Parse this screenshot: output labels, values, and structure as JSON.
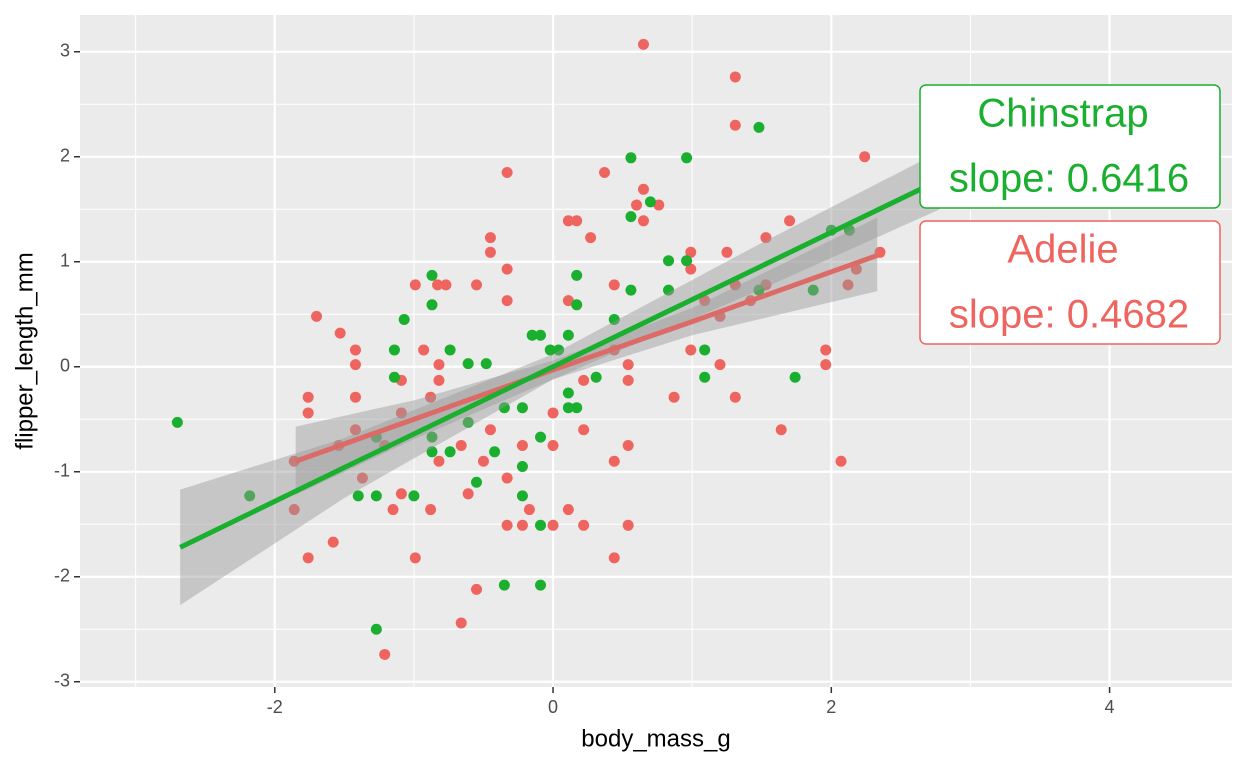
{
  "chart_data": {
    "type": "scatter",
    "x_label": "body_mass_g",
    "y_label": "flipper_length_mm",
    "xlim": [
      -3.4,
      4.88
    ],
    "ylim": [
      -3.05,
      3.35
    ],
    "xticks": [
      -2,
      0,
      2,
      4
    ],
    "yticks": [
      -3,
      -2,
      -1,
      0,
      1,
      2,
      3
    ],
    "grid": true,
    "series": [
      {
        "name": "Adelie",
        "color": "#ee6560",
        "line_color": "#dc6b68",
        "slope_label": "slope: 0.4682",
        "x": [
          0.65,
          1.31,
          1.31,
          2.24,
          -0.33,
          0.37,
          0.65,
          0.76,
          0.6,
          0.11,
          0.17,
          0.65,
          0.27,
          -0.45,
          -0.45,
          -0.33,
          -0.99,
          -0.83,
          -0.77,
          -0.55,
          -0.33,
          0.11,
          0.44,
          0.99,
          0.99,
          1.25,
          1.53,
          1.7,
          2.18,
          2.35,
          2.12,
          -1.7,
          -1.53,
          -1.42,
          -1.42,
          -1.76,
          -1.76,
          -1.86,
          -1.86,
          -1.76,
          -1.58,
          -1.42,
          -1.42,
          -1.54,
          -1.21,
          -1.37,
          -1.21,
          -1.15,
          -1.09,
          -1.09,
          -1.09,
          -0.99,
          -0.93,
          -0.88,
          -0.88,
          -0.82,
          -0.82,
          -0.82,
          -0.66,
          -0.66,
          -0.61,
          -0.55,
          -0.5,
          -0.45,
          -0.33,
          -0.33,
          -0.22,
          -0.17,
          -0.22,
          0.0,
          0.0,
          0.0,
          0.11,
          0.22,
          0.22,
          0.22,
          0.44,
          0.44,
          0.54,
          0.54,
          0.54,
          0.54,
          0.44,
          0.87,
          0.99,
          1.09,
          1.2,
          1.2,
          1.31,
          1.31,
          1.64,
          1.96,
          1.96,
          2.07,
          1.53,
          1.42
        ],
        "values": [
          3.07,
          2.76,
          2.3,
          2.0,
          1.85,
          1.85,
          1.69,
          1.54,
          1.54,
          1.39,
          1.39,
          1.39,
          1.23,
          1.23,
          1.09,
          0.93,
          0.78,
          0.78,
          0.78,
          0.78,
          0.63,
          0.63,
          0.78,
          1.09,
          0.93,
          1.09,
          1.23,
          1.39,
          0.93,
          1.09,
          0.78,
          0.48,
          0.32,
          0.16,
          0.02,
          -0.29,
          -0.44,
          -0.9,
          -1.36,
          -1.82,
          -1.67,
          -0.29,
          -0.6,
          -0.75,
          -2.74,
          -1.06,
          -0.75,
          -1.36,
          -1.21,
          -0.44,
          -0.13,
          -1.82,
          0.16,
          -1.36,
          -0.29,
          -0.13,
          0.02,
          -0.9,
          -0.75,
          -2.44,
          -1.21,
          -2.12,
          -0.9,
          -0.6,
          -1.06,
          -1.51,
          -1.51,
          -1.36,
          -0.75,
          -0.75,
          -0.44,
          -1.51,
          -1.36,
          -1.51,
          -0.6,
          -0.13,
          -0.9,
          -1.82,
          -1.51,
          -0.75,
          -0.13,
          0.02,
          0.16,
          -0.29,
          0.16,
          0.63,
          0.48,
          0.02,
          -0.29,
          0.78,
          -0.6,
          0.02,
          0.16,
          -0.9,
          0.78,
          0.63
        ],
        "fit": {
          "x": [
            -1.85,
            -1,
            0,
            1,
            2.33
          ],
          "values": [
            -0.9,
            -0.5,
            -0.03,
            0.43,
            1.06
          ],
          "lower": [
            -1.22,
            -0.69,
            -0.12,
            0.3,
            0.72
          ],
          "upper": [
            -0.57,
            -0.32,
            0.06,
            0.56,
            1.42
          ]
        }
      },
      {
        "name": "Chinstrap",
        "color": "#1aaf2e",
        "line_color": "#1aaf2e",
        "slope_label": "slope: 0.6416",
        "x": [
          -2.7,
          -2.18,
          -1.27,
          -1.4,
          -1.27,
          -1.0,
          -1.27,
          -1.14,
          -1.14,
          -1.07,
          -0.87,
          -0.87,
          -0.87,
          -0.87,
          -0.74,
          -0.74,
          -0.61,
          -0.61,
          -0.55,
          -0.48,
          -0.42,
          -0.35,
          -0.35,
          -0.22,
          -0.22,
          -0.22,
          -0.15,
          -0.09,
          -0.09,
          -0.09,
          -0.09,
          -0.02,
          0.04,
          0.11,
          0.11,
          0.11,
          0.17,
          0.17,
          0.17,
          0.31,
          0.44,
          0.56,
          0.56,
          0.56,
          0.7,
          0.83,
          0.83,
          0.96,
          0.96,
          1.09,
          1.09,
          1.48,
          1.48,
          1.74,
          1.87,
          2.0,
          2.13
        ],
        "values": [
          -0.53,
          -1.23,
          -2.5,
          -1.23,
          -1.23,
          -1.23,
          -0.67,
          0.16,
          -0.1,
          0.45,
          0.87,
          0.59,
          -0.67,
          -0.81,
          0.16,
          -0.81,
          0.03,
          -0.53,
          -1.1,
          0.03,
          -0.81,
          -2.08,
          -0.39,
          -0.39,
          -0.95,
          -1.23,
          0.3,
          0.3,
          -2.08,
          -1.51,
          -0.67,
          0.16,
          0.16,
          0.3,
          -0.25,
          -0.39,
          0.87,
          0.59,
          -0.39,
          -0.1,
          0.45,
          1.99,
          1.43,
          0.73,
          1.57,
          1.01,
          0.73,
          1.99,
          1.01,
          0.16,
          -0.1,
          2.28,
          0.73,
          -0.1,
          0.73,
          1.3,
          1.3
        ],
        "fit": {
          "x": [
            -2.68,
            -1.5,
            0,
            1.5,
            2.78
          ],
          "values": [
            -1.72,
            -0.96,
            0,
            0.96,
            1.78
          ],
          "lower": [
            -2.27,
            -1.25,
            -0.12,
            0.74,
            1.5
          ],
          "upper": [
            -1.17,
            -0.68,
            0.12,
            1.18,
            2.05
          ]
        }
      }
    ]
  }
}
